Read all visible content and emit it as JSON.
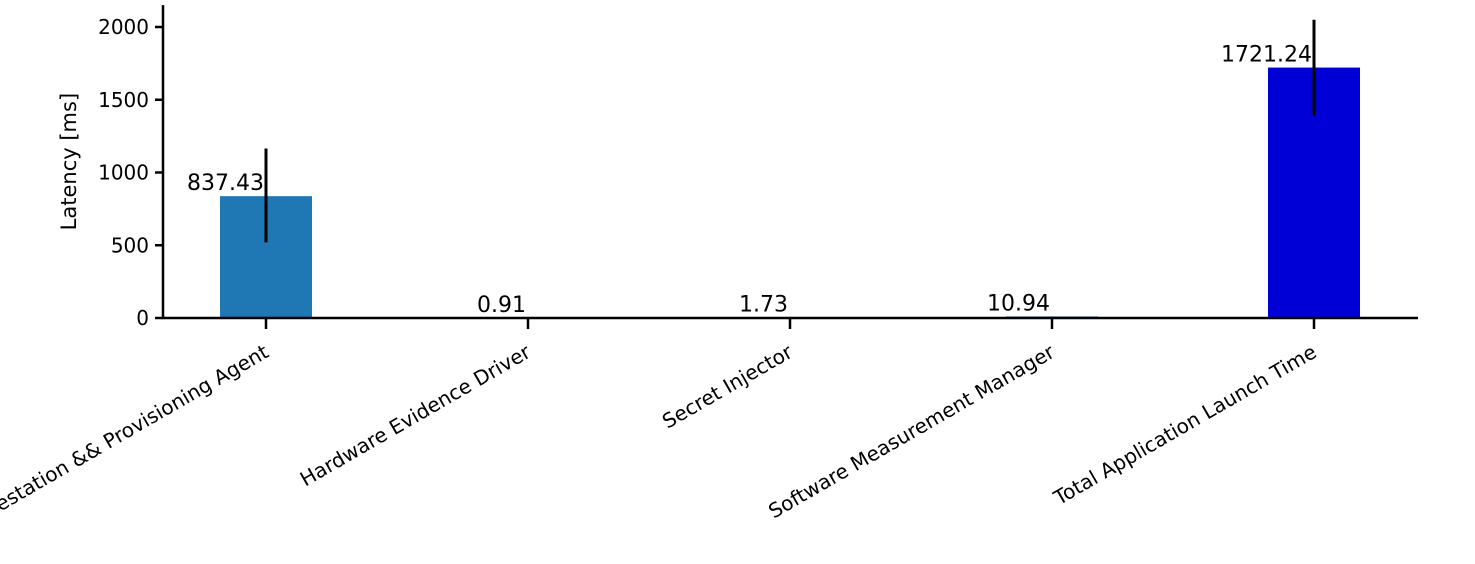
{
  "chart_data": {
    "type": "bar",
    "title": "",
    "xlabel": "",
    "ylabel": "Latency [ms]",
    "ylim": [
      0,
      2150
    ],
    "yticks": [
      0,
      500,
      1000,
      1500,
      2000
    ],
    "grid": false,
    "legend": "none",
    "categories": [
      "Attestation && Provisioning Agent",
      "Hardware Evidence Driver",
      "Secret Injector",
      "Software Measurement Manager",
      "Total Application Launch Time"
    ],
    "values": [
      837.43,
      0.91,
      1.73,
      10.94,
      1721.24
    ],
    "value_labels": [
      "837.43",
      "0.91",
      "1.73",
      "10.94",
      "1721.24"
    ],
    "error": [
      [
        520,
        1165
      ],
      null,
      null,
      null,
      [
        1390,
        2050
      ]
    ],
    "colors": [
      "#1f77b4",
      "#1f77b4",
      "#1f77b4",
      "#1f77b4",
      "#0000d6"
    ]
  }
}
